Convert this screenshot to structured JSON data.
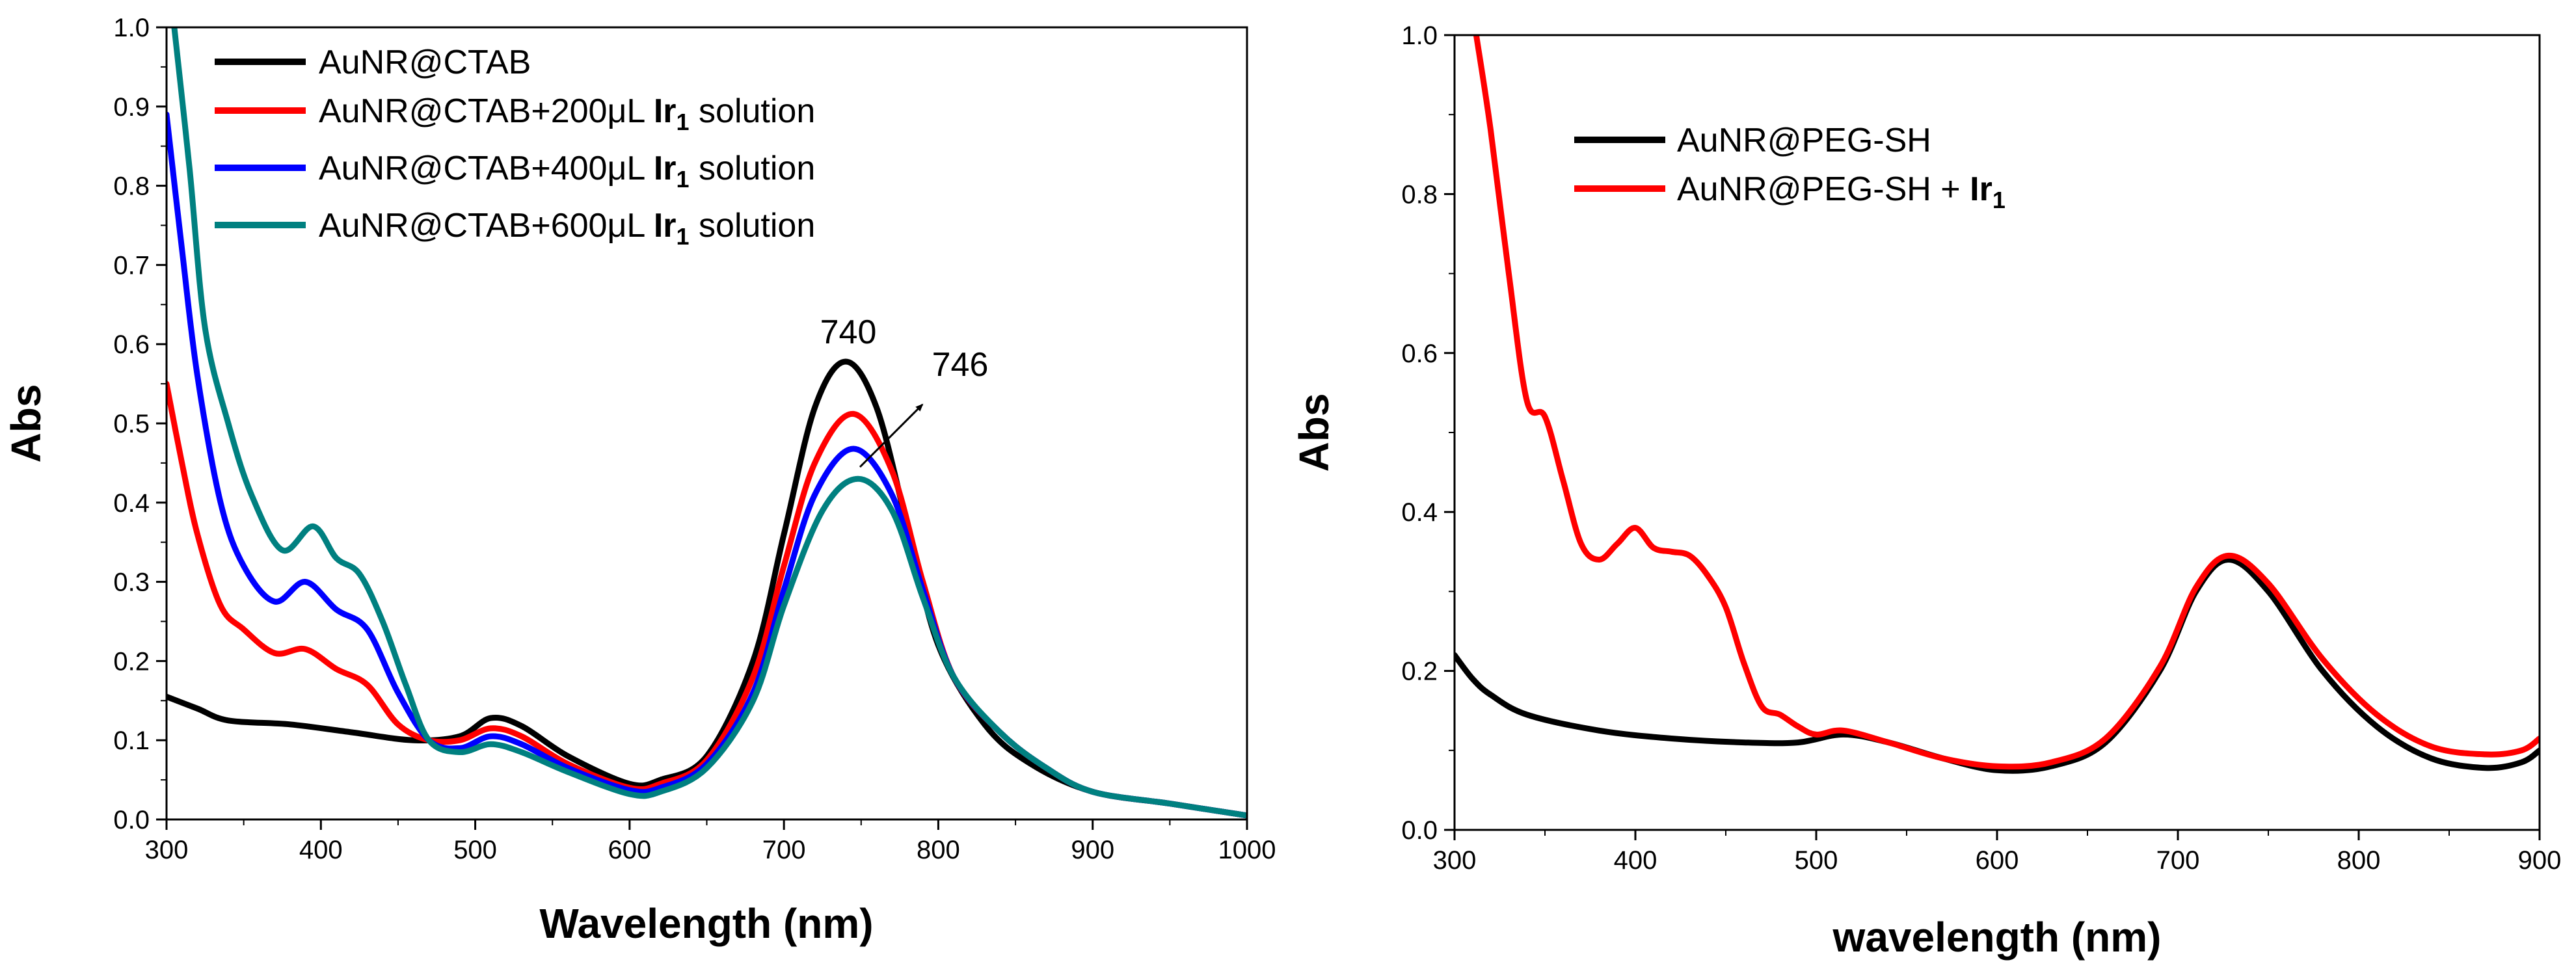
{
  "chart_data": [
    {
      "type": "line",
      "xlabel": "Wavelength (nm)",
      "ylabel": "Abs",
      "xlim": [
        300,
        1000
      ],
      "ylim": [
        0.0,
        1.0
      ],
      "x_ticks": [
        "300",
        "400",
        "500",
        "600",
        "700",
        "800",
        "900",
        "1000"
      ],
      "y_ticks": [
        "0.0",
        "0.1",
        "0.2",
        "0.3",
        "0.4",
        "0.5",
        "0.6",
        "0.7",
        "0.8",
        "0.9",
        "1.0"
      ],
      "legend_position": "top-left",
      "grid": false,
      "annotations": [
        {
          "text": "740",
          "x": 740,
          "y": 0.6
        },
        {
          "text": "746",
          "x": 790,
          "y": 0.575
        }
      ],
      "series": [
        {
          "name": "AuNR@CTAB",
          "legend_text": "AuNR@CTAB",
          "color": "#000000",
          "x": [
            300,
            320,
            340,
            380,
            420,
            460,
            490,
            510,
            530,
            560,
            600,
            620,
            650,
            680,
            700,
            720,
            740,
            760,
            780,
            800,
            830,
            860,
            900,
            950,
            1000
          ],
          "y": [
            0.155,
            0.14,
            0.125,
            0.12,
            0.11,
            0.1,
            0.105,
            0.128,
            0.118,
            0.08,
            0.045,
            0.05,
            0.08,
            0.2,
            0.36,
            0.52,
            0.578,
            0.52,
            0.37,
            0.22,
            0.12,
            0.07,
            0.035,
            0.02,
            0.005
          ]
        },
        {
          "name": "AuNR@CTAB+200µL Ir1 solution",
          "legend_text": "AuNR@CTAB+200μL ",
          "legend_bold": "Ir",
          "legend_sub": "1",
          "legend_suffix": " solution",
          "color": "#ff0000",
          "x": [
            300,
            310,
            320,
            335,
            350,
            370,
            390,
            410,
            430,
            450,
            470,
            490,
            510,
            530,
            560,
            600,
            620,
            650,
            680,
            700,
            720,
            745,
            770,
            790,
            810,
            840,
            870,
            900,
            950,
            1000
          ],
          "y": [
            0.55,
            0.45,
            0.36,
            0.27,
            0.24,
            0.21,
            0.215,
            0.19,
            0.17,
            0.12,
            0.1,
            0.1,
            0.115,
            0.105,
            0.07,
            0.04,
            0.045,
            0.075,
            0.18,
            0.32,
            0.45,
            0.512,
            0.44,
            0.3,
            0.18,
            0.11,
            0.065,
            0.035,
            0.02,
            0.005
          ]
        },
        {
          "name": "AuNR@CTAB+400µL Ir1 solution",
          "legend_text": "AuNR@CTAB+400μL ",
          "legend_bold": "Ir",
          "legend_sub": "1",
          "legend_suffix": " solution",
          "color": "#0000ff",
          "x": [
            300,
            310,
            320,
            335,
            350,
            370,
            390,
            410,
            430,
            450,
            470,
            490,
            510,
            530,
            560,
            600,
            620,
            650,
            680,
            700,
            720,
            745,
            770,
            790,
            810,
            840,
            870,
            900,
            950,
            1000
          ],
          "y": [
            0.89,
            0.72,
            0.56,
            0.4,
            0.32,
            0.275,
            0.3,
            0.265,
            0.24,
            0.16,
            0.1,
            0.09,
            0.105,
            0.095,
            0.065,
            0.037,
            0.04,
            0.07,
            0.16,
            0.29,
            0.41,
            0.468,
            0.41,
            0.29,
            0.18,
            0.11,
            0.065,
            0.035,
            0.02,
            0.005
          ]
        },
        {
          "name": "AuNR@CTAB+600µL Ir1 solution",
          "legend_text": "AuNR@CTAB+600μL ",
          "legend_bold": "Ir",
          "legend_sub": "1",
          "legend_suffix": " solution",
          "color": "#008080",
          "x": [
            305,
            315,
            325,
            340,
            355,
            375,
            395,
            410,
            425,
            440,
            455,
            470,
            490,
            510,
            530,
            560,
            600,
            620,
            650,
            680,
            700,
            725,
            748,
            770,
            790,
            810,
            840,
            870,
            900,
            950,
            1000
          ],
          "y": [
            1.0,
            0.82,
            0.62,
            0.5,
            0.41,
            0.34,
            0.37,
            0.33,
            0.31,
            0.25,
            0.17,
            0.1,
            0.085,
            0.095,
            0.085,
            0.06,
            0.032,
            0.035,
            0.065,
            0.15,
            0.27,
            0.39,
            0.43,
            0.39,
            0.28,
            0.18,
            0.11,
            0.065,
            0.035,
            0.02,
            0.005
          ]
        }
      ]
    },
    {
      "type": "line",
      "xlabel": "wavelength (nm)",
      "ylabel": "Abs",
      "xlim": [
        300,
        900
      ],
      "ylim": [
        0.0,
        1.0
      ],
      "x_ticks": [
        "300",
        "400",
        "500",
        "600",
        "700",
        "800",
        "900"
      ],
      "y_ticks": [
        "0.0",
        "0.2",
        "0.4",
        "0.6",
        "0.8",
        "1.0"
      ],
      "legend_position": "top-left",
      "grid": false,
      "series": [
        {
          "name": "AuNR@PEG-SH",
          "legend_text": "AuNR@PEG-SH",
          "color": "#000000",
          "x": [
            300,
            310,
            320,
            340,
            380,
            420,
            460,
            490,
            515,
            540,
            570,
            600,
            630,
            660,
            690,
            710,
            728,
            750,
            780,
            810,
            840,
            870,
            890,
            900
          ],
          "y": [
            0.22,
            0.19,
            0.17,
            0.145,
            0.125,
            0.115,
            0.11,
            0.11,
            0.12,
            0.11,
            0.09,
            0.075,
            0.08,
            0.11,
            0.2,
            0.3,
            0.34,
            0.3,
            0.2,
            0.13,
            0.09,
            0.078,
            0.085,
            0.1
          ]
        },
        {
          "name": "AuNR@PEG-SH + Ir1",
          "legend_text": "AuNR@PEG-SH + ",
          "legend_bold": "Ir",
          "legend_sub": "1",
          "legend_suffix": "",
          "color": "#ff0000",
          "x": [
            312,
            320,
            330,
            340,
            350,
            360,
            370,
            380,
            390,
            400,
            410,
            420,
            430,
            440,
            450,
            460,
            470,
            480,
            490,
            500,
            515,
            540,
            570,
            600,
            630,
            660,
            690,
            710,
            728,
            750,
            780,
            810,
            840,
            870,
            890,
            900
          ],
          "y": [
            1.0,
            0.88,
            0.7,
            0.54,
            0.52,
            0.44,
            0.36,
            0.34,
            0.36,
            0.38,
            0.355,
            0.35,
            0.345,
            0.32,
            0.28,
            0.21,
            0.155,
            0.145,
            0.13,
            0.12,
            0.125,
            0.11,
            0.09,
            0.08,
            0.085,
            0.115,
            0.205,
            0.305,
            0.345,
            0.31,
            0.215,
            0.145,
            0.105,
            0.095,
            0.1,
            0.115
          ]
        }
      ]
    }
  ]
}
